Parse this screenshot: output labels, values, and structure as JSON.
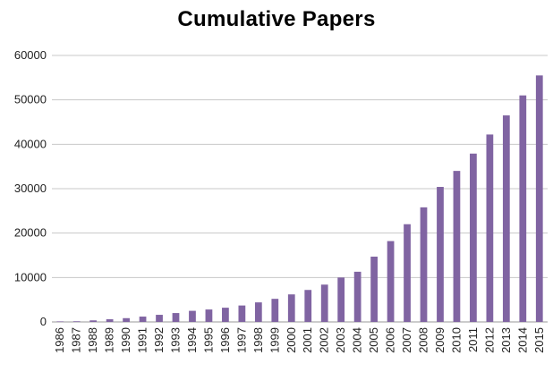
{
  "chart_data": {
    "type": "bar",
    "title": "Cumulative  Papers",
    "xlabel": "",
    "ylabel": "",
    "ylim": [
      0,
      60000
    ],
    "yticks": [
      0,
      10000,
      20000,
      30000,
      40000,
      50000,
      60000
    ],
    "grid": true,
    "legend": "none",
    "bar_color": "#8064a2",
    "categories": [
      "1986",
      "1987",
      "1988",
      "1989",
      "1990",
      "1991",
      "1992",
      "1993",
      "1994",
      "1995",
      "1996",
      "1997",
      "1998",
      "1999",
      "2000",
      "2001",
      "2002",
      "2003",
      "2004",
      "2005",
      "2006",
      "2007",
      "2008",
      "2009",
      "2010",
      "2011",
      "2012",
      "2013",
      "2014",
      "2015"
    ],
    "values": [
      50,
      150,
      350,
      600,
      850,
      1200,
      1600,
      2000,
      2500,
      2800,
      3200,
      3700,
      4400,
      5200,
      6200,
      7200,
      8400,
      10000,
      11300,
      14700,
      18200,
      22000,
      25800,
      30400,
      34000,
      37900,
      42200,
      46500,
      51000,
      55500
    ]
  }
}
